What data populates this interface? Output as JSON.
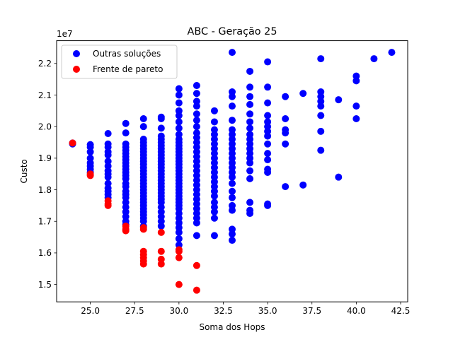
{
  "chart_data": {
    "type": "scatter",
    "title": "ABC - Geração 25",
    "xlabel": "Soma dos Hops",
    "ylabel": "Custo",
    "y_offset_label": "1e7",
    "xlim": [
      23.1,
      42.9
    ],
    "ylim": [
      14.45,
      22.72
    ],
    "x_ticks": [
      25.0,
      27.5,
      30.0,
      32.5,
      35.0,
      37.5,
      40.0,
      42.5
    ],
    "x_tick_labels": [
      "25.0",
      "27.5",
      "30.0",
      "32.5",
      "35.0",
      "37.5",
      "40.0",
      "42.5"
    ],
    "y_ticks": [
      15,
      16,
      17,
      18,
      19,
      20,
      21,
      22
    ],
    "y_tick_labels": [
      "1.5",
      "1.6",
      "1.7",
      "1.8",
      "1.9",
      "2.0",
      "2.1",
      "2.2"
    ],
    "y_unit_note": "y values are in units of 1e6 (plotted scale 1e7)",
    "grid": false,
    "legend_position": "upper left",
    "series": [
      {
        "name": "Outras soluções",
        "color": "#0000ff",
        "points": [
          [
            24,
            19.45
          ],
          [
            24,
            19.48
          ],
          [
            25,
            19.43
          ],
          [
            25,
            19.35
          ],
          [
            25,
            19.2
          ],
          [
            25,
            19.0
          ],
          [
            25,
            18.85
          ],
          [
            25,
            18.75
          ],
          [
            25,
            18.65
          ],
          [
            25,
            18.55
          ],
          [
            26,
            19.78
          ],
          [
            26,
            19.45
          ],
          [
            26,
            19.35
          ],
          [
            26,
            19.2
          ],
          [
            26,
            19.1
          ],
          [
            26,
            18.9
          ],
          [
            26,
            18.75
          ],
          [
            26,
            18.6
          ],
          [
            26,
            18.5
          ],
          [
            26,
            18.4
          ],
          [
            26,
            18.2
          ],
          [
            26,
            18.05
          ],
          [
            26,
            17.95
          ],
          [
            26,
            17.85
          ],
          [
            26,
            17.75
          ],
          [
            27,
            20.1
          ],
          [
            27,
            19.8
          ],
          [
            27,
            19.45
          ],
          [
            27,
            19.35
          ],
          [
            27,
            19.25
          ],
          [
            27,
            19.15
          ],
          [
            27,
            19.05
          ],
          [
            27,
            18.95
          ],
          [
            27,
            18.85
          ],
          [
            27,
            18.75
          ],
          [
            27,
            18.65
          ],
          [
            27,
            18.55
          ],
          [
            27,
            18.45
          ],
          [
            27,
            18.35
          ],
          [
            27,
            18.2
          ],
          [
            27,
            18.1
          ],
          [
            27,
            17.95
          ],
          [
            27,
            17.85
          ],
          [
            27,
            17.75
          ],
          [
            27,
            17.6
          ],
          [
            27,
            17.45
          ],
          [
            27,
            17.3
          ],
          [
            27,
            17.15
          ],
          [
            27,
            17.0
          ],
          [
            27,
            16.9
          ],
          [
            28,
            20.25
          ],
          [
            28,
            20.0
          ],
          [
            28,
            19.6
          ],
          [
            28,
            19.5
          ],
          [
            28,
            19.4
          ],
          [
            28,
            19.3
          ],
          [
            28,
            19.2
          ],
          [
            28,
            19.1
          ],
          [
            28,
            19.0
          ],
          [
            28,
            18.9
          ],
          [
            28,
            18.8
          ],
          [
            28,
            18.7
          ],
          [
            28,
            18.6
          ],
          [
            28,
            18.5
          ],
          [
            28,
            18.4
          ],
          [
            28,
            18.3
          ],
          [
            28,
            18.2
          ],
          [
            28,
            18.1
          ],
          [
            28,
            18.0
          ],
          [
            28,
            17.9
          ],
          [
            28,
            17.8
          ],
          [
            28,
            17.7
          ],
          [
            28,
            17.6
          ],
          [
            28,
            17.5
          ],
          [
            28,
            17.4
          ],
          [
            28,
            17.3
          ],
          [
            28,
            17.2
          ],
          [
            28,
            17.1
          ],
          [
            28,
            17.0
          ],
          [
            28,
            16.85
          ],
          [
            29,
            20.3
          ],
          [
            29,
            20.25
          ],
          [
            29,
            19.95
          ],
          [
            29,
            19.7
          ],
          [
            29,
            19.6
          ],
          [
            29,
            19.5
          ],
          [
            29,
            19.4
          ],
          [
            29,
            19.3
          ],
          [
            29,
            19.2
          ],
          [
            29,
            19.1
          ],
          [
            29,
            19.0
          ],
          [
            29,
            18.9
          ],
          [
            29,
            18.8
          ],
          [
            29,
            18.7
          ],
          [
            29,
            18.6
          ],
          [
            29,
            18.5
          ],
          [
            29,
            18.4
          ],
          [
            29,
            18.3
          ],
          [
            29,
            18.2
          ],
          [
            29,
            18.1
          ],
          [
            29,
            18.0
          ],
          [
            29,
            17.9
          ],
          [
            29,
            17.8
          ],
          [
            29,
            17.7
          ],
          [
            29,
            17.6
          ],
          [
            29,
            17.45
          ],
          [
            29,
            17.3
          ],
          [
            29,
            17.15
          ],
          [
            29,
            17.0
          ],
          [
            29,
            16.85
          ],
          [
            30,
            21.2
          ],
          [
            30,
            21.0
          ],
          [
            30,
            20.75
          ],
          [
            30,
            20.5
          ],
          [
            30,
            20.35
          ],
          [
            30,
            20.15
          ],
          [
            30,
            19.95
          ],
          [
            30,
            19.75
          ],
          [
            30,
            19.6
          ],
          [
            30,
            19.5
          ],
          [
            30,
            19.4
          ],
          [
            30,
            19.3
          ],
          [
            30,
            19.2
          ],
          [
            30,
            19.1
          ],
          [
            30,
            19.0
          ],
          [
            30,
            18.9
          ],
          [
            30,
            18.8
          ],
          [
            30,
            18.7
          ],
          [
            30,
            18.6
          ],
          [
            30,
            18.5
          ],
          [
            30,
            18.4
          ],
          [
            30,
            18.3
          ],
          [
            30,
            18.2
          ],
          [
            30,
            18.1
          ],
          [
            30,
            18.0
          ],
          [
            30,
            17.9
          ],
          [
            30,
            17.8
          ],
          [
            30,
            17.7
          ],
          [
            30,
            17.6
          ],
          [
            30,
            17.5
          ],
          [
            30,
            17.4
          ],
          [
            30,
            17.25
          ],
          [
            30,
            17.1
          ],
          [
            30,
            16.95
          ],
          [
            30,
            16.8
          ],
          [
            30,
            16.65
          ],
          [
            30,
            16.45
          ],
          [
            30,
            16.25
          ],
          [
            31,
            21.3
          ],
          [
            31,
            21.05
          ],
          [
            31,
            20.8
          ],
          [
            31,
            20.65
          ],
          [
            31,
            20.4
          ],
          [
            31,
            20.2
          ],
          [
            31,
            20.0
          ],
          [
            31,
            19.8
          ],
          [
            31,
            19.65
          ],
          [
            31,
            19.5
          ],
          [
            31,
            19.35
          ],
          [
            31,
            19.2
          ],
          [
            31,
            19.05
          ],
          [
            31,
            18.9
          ],
          [
            31,
            18.75
          ],
          [
            31,
            18.6
          ],
          [
            31,
            18.45
          ],
          [
            31,
            18.3
          ],
          [
            31,
            18.15
          ],
          [
            31,
            18.0
          ],
          [
            31,
            17.85
          ],
          [
            31,
            17.7
          ],
          [
            31,
            17.55
          ],
          [
            31,
            17.4
          ],
          [
            31,
            17.25
          ],
          [
            31,
            17.1
          ],
          [
            31,
            16.95
          ],
          [
            31,
            16.55
          ],
          [
            32,
            20.5
          ],
          [
            32,
            20.15
          ],
          [
            32,
            19.9
          ],
          [
            32,
            19.75
          ],
          [
            32,
            19.6
          ],
          [
            32,
            19.45
          ],
          [
            32,
            19.3
          ],
          [
            32,
            19.15
          ],
          [
            32,
            19.0
          ],
          [
            32,
            18.85
          ],
          [
            32,
            18.7
          ],
          [
            32,
            18.55
          ],
          [
            32,
            18.4
          ],
          [
            32,
            18.25
          ],
          [
            32,
            18.1
          ],
          [
            32,
            17.95
          ],
          [
            32,
            17.8
          ],
          [
            32,
            17.6
          ],
          [
            32,
            17.45
          ],
          [
            32,
            17.3
          ],
          [
            32,
            17.1
          ],
          [
            32,
            16.55
          ],
          [
            33,
            22.35
          ],
          [
            33,
            21.1
          ],
          [
            33,
            20.95
          ],
          [
            33,
            20.65
          ],
          [
            33,
            20.2
          ],
          [
            33,
            19.9
          ],
          [
            33,
            19.75
          ],
          [
            33,
            19.6
          ],
          [
            33,
            19.45
          ],
          [
            33,
            19.3
          ],
          [
            33,
            19.15
          ],
          [
            33,
            19.0
          ],
          [
            33,
            18.85
          ],
          [
            33,
            18.7
          ],
          [
            33,
            18.55
          ],
          [
            33,
            18.4
          ],
          [
            33,
            18.2
          ],
          [
            33,
            17.95
          ],
          [
            33,
            17.75
          ],
          [
            33,
            17.5
          ],
          [
            33,
            17.35
          ],
          [
            33,
            16.75
          ],
          [
            33,
            16.6
          ],
          [
            33,
            16.4
          ],
          [
            34,
            21.75
          ],
          [
            34,
            21.25
          ],
          [
            34,
            20.95
          ],
          [
            34,
            20.7
          ],
          [
            34,
            20.4
          ],
          [
            34,
            20.15
          ],
          [
            34,
            19.95
          ],
          [
            34,
            19.75
          ],
          [
            34,
            19.6
          ],
          [
            34,
            19.45
          ],
          [
            34,
            19.3
          ],
          [
            34,
            19.15
          ],
          [
            34,
            19.0
          ],
          [
            34,
            18.85
          ],
          [
            34,
            18.6
          ],
          [
            34,
            18.35
          ],
          [
            34,
            17.6
          ],
          [
            34,
            17.35
          ],
          [
            34,
            17.25
          ],
          [
            35,
            22.05
          ],
          [
            35,
            21.25
          ],
          [
            35,
            20.75
          ],
          [
            35,
            20.35
          ],
          [
            35,
            20.15
          ],
          [
            35,
            20.0
          ],
          [
            35,
            19.85
          ],
          [
            35,
            19.7
          ],
          [
            35,
            19.45
          ],
          [
            35,
            19.15
          ],
          [
            35,
            18.95
          ],
          [
            35,
            18.65
          ],
          [
            35,
            18.55
          ],
          [
            35,
            17.55
          ],
          [
            35,
            17.5
          ],
          [
            36,
            20.95
          ],
          [
            36,
            20.25
          ],
          [
            36,
            19.9
          ],
          [
            36,
            19.8
          ],
          [
            36,
            19.45
          ],
          [
            36,
            18.1
          ],
          [
            37,
            21.05
          ],
          [
            37,
            18.15
          ],
          [
            38,
            22.15
          ],
          [
            38,
            21.1
          ],
          [
            38,
            20.95
          ],
          [
            38,
            20.8
          ],
          [
            38,
            20.65
          ],
          [
            38,
            20.35
          ],
          [
            38,
            19.85
          ],
          [
            38,
            19.25
          ],
          [
            39,
            20.85
          ],
          [
            39,
            18.4
          ],
          [
            40,
            21.6
          ],
          [
            40,
            21.45
          ],
          [
            40,
            20.65
          ],
          [
            40,
            20.25
          ],
          [
            41,
            22.15
          ],
          [
            42,
            22.35
          ]
        ]
      },
      {
        "name": "Frente de pareto",
        "color": "#ff0000",
        "points": [
          [
            24,
            19.48
          ],
          [
            25,
            18.5
          ],
          [
            25,
            18.45
          ],
          [
            26,
            17.65
          ],
          [
            26,
            17.55
          ],
          [
            26,
            17.5
          ],
          [
            27,
            16.85
          ],
          [
            27,
            16.75
          ],
          [
            27,
            16.7
          ],
          [
            28,
            16.8
          ],
          [
            28,
            16.75
          ],
          [
            28,
            16.05
          ],
          [
            28,
            15.95
          ],
          [
            28,
            15.85
          ],
          [
            28,
            15.75
          ],
          [
            28,
            15.65
          ],
          [
            29,
            16.65
          ],
          [
            29,
            16.05
          ],
          [
            29,
            15.8
          ],
          [
            29,
            15.65
          ],
          [
            30,
            16.1
          ],
          [
            30,
            16.05
          ],
          [
            30,
            15.85
          ],
          [
            30,
            15.0
          ],
          [
            31,
            15.6
          ],
          [
            31,
            14.82
          ]
        ]
      }
    ]
  }
}
